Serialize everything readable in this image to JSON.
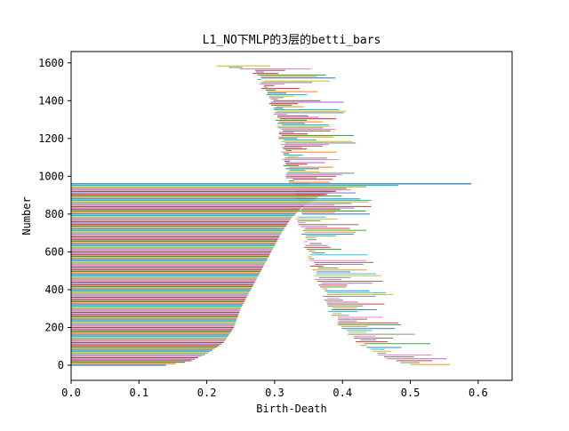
{
  "chart_data": {
    "type": "bar",
    "orientation": "horizontal",
    "title": "L1_NO下MLP的3层的betti_bars",
    "xlabel": "Birth-Death",
    "ylabel": "Number",
    "xlim": [
      0,
      0.65
    ],
    "ylim": [
      -80,
      1660
    ],
    "xticks": [
      "0.0",
      "0.1",
      "0.2",
      "0.3",
      "0.4",
      "0.5",
      "0.6"
    ],
    "yticks": [
      "0",
      "200",
      "400",
      "600",
      "800",
      "1000",
      "1200",
      "1400",
      "1600"
    ],
    "grid": false,
    "legend": "none",
    "palette": [
      "#1f77b4",
      "#ff7f0e",
      "#2ca02c",
      "#d62728",
      "#9467bd",
      "#8c564b",
      "#e377c2",
      "#7f7f7f",
      "#bcbd22",
      "#17becf"
    ],
    "bar_count": 1585,
    "bar_groups": [
      {
        "description": "lower region, bars from 0 with increasing death",
        "index_range": [
          0,
          960
        ],
        "birth": 0,
        "death_curve": [
          [
            0,
            0.14
          ],
          [
            20,
            0.175
          ],
          [
            60,
            0.2
          ],
          [
            120,
            0.225
          ],
          [
            200,
            0.24
          ],
          [
            300,
            0.25
          ],
          [
            400,
            0.265
          ],
          [
            500,
            0.28
          ],
          [
            600,
            0.295
          ],
          [
            700,
            0.31
          ],
          [
            780,
            0.325
          ],
          [
            850,
            0.345
          ],
          [
            900,
            0.37
          ],
          [
            940,
            0.41
          ],
          [
            955,
            0.5
          ],
          [
            960,
            0.59
          ]
        ]
      },
      {
        "description": "short bars near the left boundary of the upper cloud",
        "index_range": [
          0,
          780
        ],
        "birth_curve": [
          [
            0,
            0.5
          ],
          [
            40,
            0.46
          ],
          [
            100,
            0.43
          ],
          [
            200,
            0.4
          ],
          [
            300,
            0.38
          ],
          [
            400,
            0.37
          ],
          [
            500,
            0.36
          ],
          [
            600,
            0.35
          ],
          [
            700,
            0.345
          ],
          [
            780,
            0.335
          ]
        ],
        "length_range": [
          0.005,
          0.1
        ]
      },
      {
        "description": "upper region bars starting on the S-shaped front",
        "index_range": [
          800,
          1585
        ],
        "birth_curve": [
          [
            800,
            0.34
          ],
          [
            960,
            0.325
          ],
          [
            1000,
            0.32
          ],
          [
            1100,
            0.315
          ],
          [
            1200,
            0.31
          ],
          [
            1300,
            0.305
          ],
          [
            1400,
            0.295
          ],
          [
            1500,
            0.28
          ],
          [
            1560,
            0.27
          ],
          [
            1585,
            0.21
          ]
        ],
        "length_range": [
          0.005,
          0.11
        ]
      }
    ]
  }
}
